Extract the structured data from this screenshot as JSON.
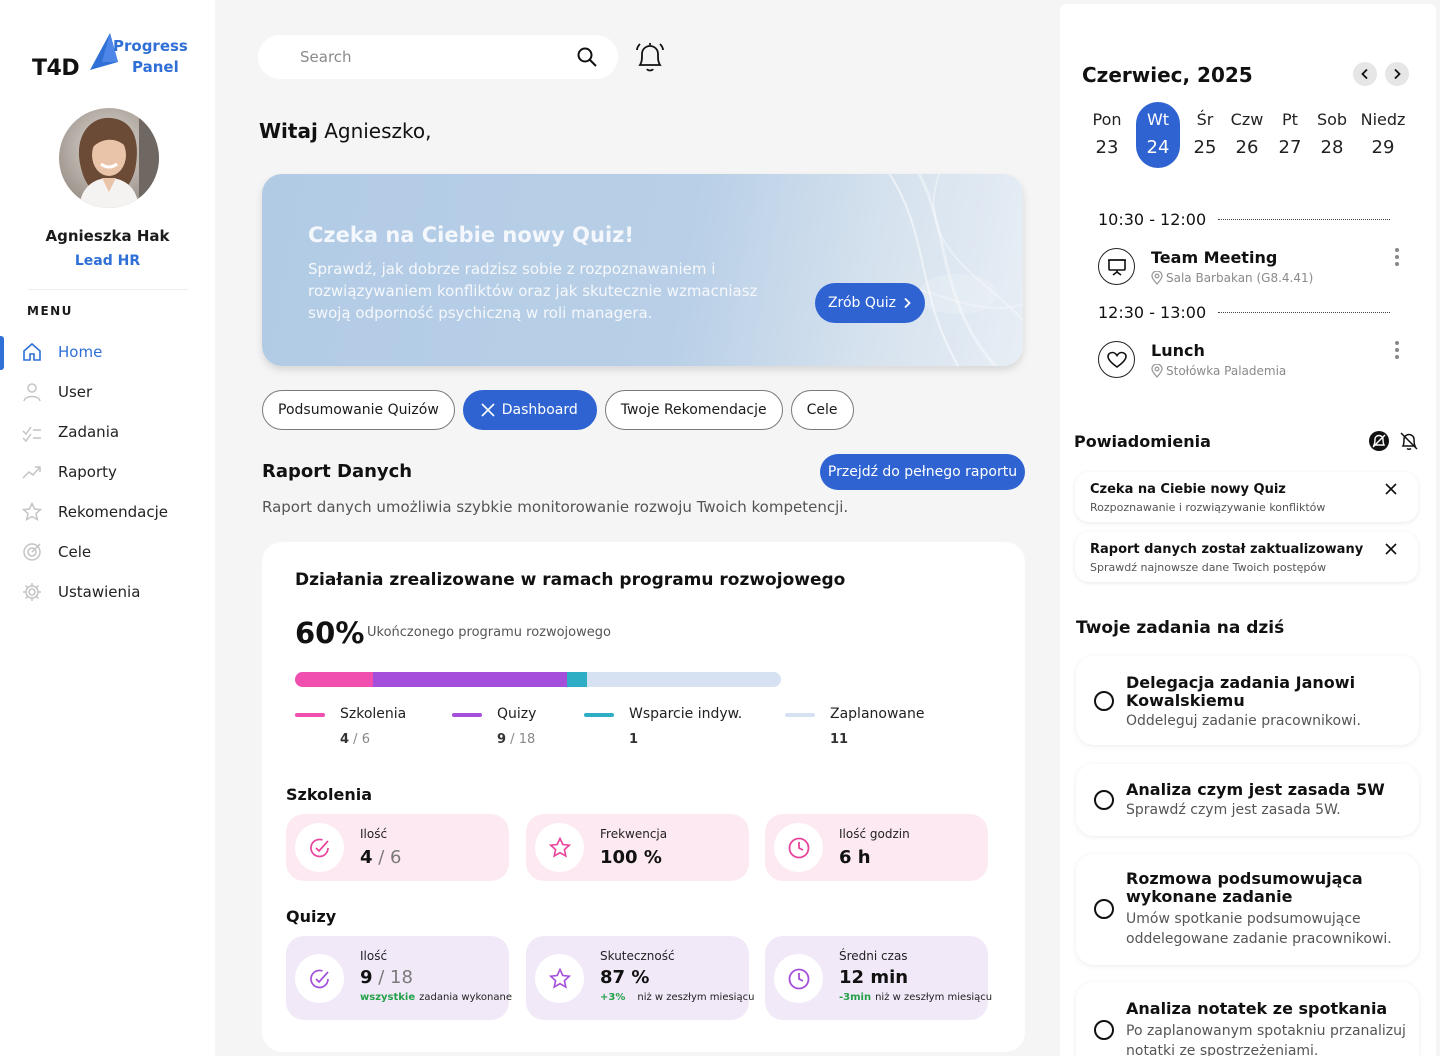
{
  "brand": {
    "logo_main": "T4D",
    "logo_line1": "Progress",
    "logo_line2": "Panel",
    "accent": "#2f63d2"
  },
  "user": {
    "name": "Agnieszka Hak",
    "role": "Lead HR"
  },
  "menu": {
    "title": "MENU",
    "items": [
      {
        "label": "Home",
        "icon": "home-icon",
        "active": true
      },
      {
        "label": "User",
        "icon": "user-icon"
      },
      {
        "label": "Zadania",
        "icon": "tasks-icon"
      },
      {
        "label": "Raporty",
        "icon": "trend-icon"
      },
      {
        "label": "Rekomendacje",
        "icon": "star-icon"
      },
      {
        "label": "Cele",
        "icon": "target-icon"
      },
      {
        "label": "Ustawienia",
        "icon": "gear-icon"
      }
    ]
  },
  "search": {
    "placeholder": "Search"
  },
  "greeting": {
    "bold": "Witaj",
    "name": "Agnieszko,"
  },
  "banner": {
    "title": "Czeka na Ciebie nowy Quiz!",
    "text": "Sprawdź, jak dobrze radzisz sobie z rozpoznawaniem i rozwiązywaniem konfliktów oraz jak skutecznie wzmacniasz swoją odporność psychiczną w roli managera.",
    "button": "Zrób Quiz"
  },
  "tabs": [
    {
      "label": "Podsumowanie Quizów"
    },
    {
      "label": "Dashboard",
      "active": true
    },
    {
      "label": "Twoje Rekomendacje"
    },
    {
      "label": "Cele"
    }
  ],
  "report": {
    "title": "Raport Danych",
    "button": "Przejdź do pełnego raportu",
    "description": "Raport danych umożliwia szybkie monitorowanie rozwoju Twoich kompetencji."
  },
  "program": {
    "title": "Działania zrealizowane w ramach programu rozwojowego",
    "percent": "60%",
    "percent_label": "Ukończonego programu rozwojowego",
    "segments": [
      {
        "name": "Szkolenia",
        "color": "#f04fb0",
        "share": 0.16,
        "value": "4",
        "total": " / 6"
      },
      {
        "name": "Quizy",
        "color": "#a44fdb",
        "share": 0.4,
        "value": "9",
        "total": " / 18"
      },
      {
        "name": "Wsparcie indyw.",
        "color": "#2eaec5",
        "share": 0.04,
        "value": "1",
        "total": ""
      },
      {
        "name": "Zaplanowane",
        "color": "#d6e2f2",
        "share": 0.4,
        "value": "11",
        "total": ""
      }
    ]
  },
  "szkolenia": {
    "title": "Szkolenia",
    "stats": [
      {
        "label": "Ilość",
        "value": "4",
        "total": " / 6",
        "icon": "check-circle-icon"
      },
      {
        "label": "Frekwencja",
        "value": "100 %",
        "total": "",
        "icon": "star-icon"
      },
      {
        "label": "Ilość godzin",
        "value": "6 h",
        "total": "",
        "icon": "clock-icon"
      }
    ]
  },
  "quizy": {
    "title": "Quizy",
    "stats": [
      {
        "label": "Ilość",
        "value": "9",
        "total": " / 18",
        "note_hl": "wszystkie",
        "note": "zadania wykonane",
        "icon": "check-circle-icon"
      },
      {
        "label": "Skuteczność",
        "value": "87 %",
        "total": "",
        "note_hl": "+3%",
        "note": "niż w zeszłym miesiącu",
        "icon": "star-icon"
      },
      {
        "label": "Średni czas",
        "value": "12 min",
        "total": "",
        "note_hl": "-3min",
        "note": "niż w zeszłym miesiącu",
        "icon": "clock-icon"
      }
    ]
  },
  "calendar": {
    "month": "Czerwiec, 2025",
    "days": [
      {
        "name": "Pon",
        "date": "23"
      },
      {
        "name": "Wt",
        "date": "24",
        "active": true
      },
      {
        "name": "Śr",
        "date": "25"
      },
      {
        "name": "Czw",
        "date": "26"
      },
      {
        "name": "Pt",
        "date": "27"
      },
      {
        "name": "Sob",
        "date": "28"
      },
      {
        "name": "Niedz",
        "date": "29"
      }
    ],
    "events": [
      {
        "time": "10:30 - 12:00",
        "title": "Team Meeting",
        "location": "Sala Barbakan (G8.4.41)",
        "icon": "presentation-icon"
      },
      {
        "time": "12:30 - 13:00",
        "title": "Lunch",
        "location": "Stołówka Palademia",
        "icon": "heart-icon"
      }
    ]
  },
  "notifications": {
    "title": "Powiadomienia",
    "items": [
      {
        "title": "Czeka na Ciebie nowy Quiz",
        "subtitle": "Rozpoznawanie i rozwiązywanie konfliktów"
      },
      {
        "title": "Raport danych został zaktualizowany",
        "subtitle": "Sprawdź najnowsze dane Twoich postępów"
      }
    ]
  },
  "tasks": {
    "title": "Twoje zadania na dziś",
    "items": [
      {
        "title": "Delegacja zadania Janowi Kowalskiemu",
        "desc": "Oddeleguj zadanie pracownikowi."
      },
      {
        "title": "Analiza czym jest zasada 5W",
        "desc": "Sprawdź czym jest zasada 5W."
      },
      {
        "title": "Rozmowa podsumowująca wykonane zadanie",
        "desc": "Umów spotkanie podsumowujące oddelegowane zadanie pracownikowi."
      },
      {
        "title": "Analiza notatek ze spotkania",
        "desc": "Po zaplanowanym spotakniu przanalizuj notatki ze spostrzeżeniami."
      }
    ]
  }
}
